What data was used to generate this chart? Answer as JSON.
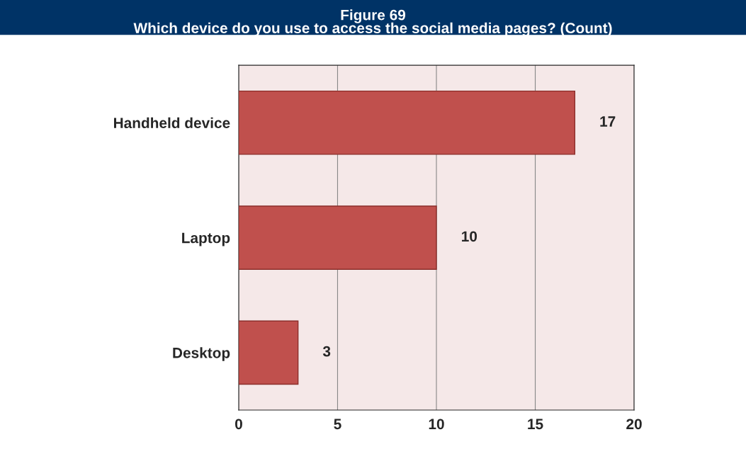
{
  "chart_data": {
    "type": "bar",
    "orientation": "horizontal",
    "title": "Figure 69",
    "subtitle": "Which device do you use to access the social media pages? (Count)",
    "categories": [
      "Handheld device",
      "Laptop",
      "Desktop"
    ],
    "values": [
      17,
      10,
      3
    ],
    "color": "#c0504d",
    "xlim": [
      0,
      20
    ],
    "xticks": [
      0,
      5,
      10,
      15,
      20
    ],
    "grid": "x",
    "data_labels": true
  }
}
